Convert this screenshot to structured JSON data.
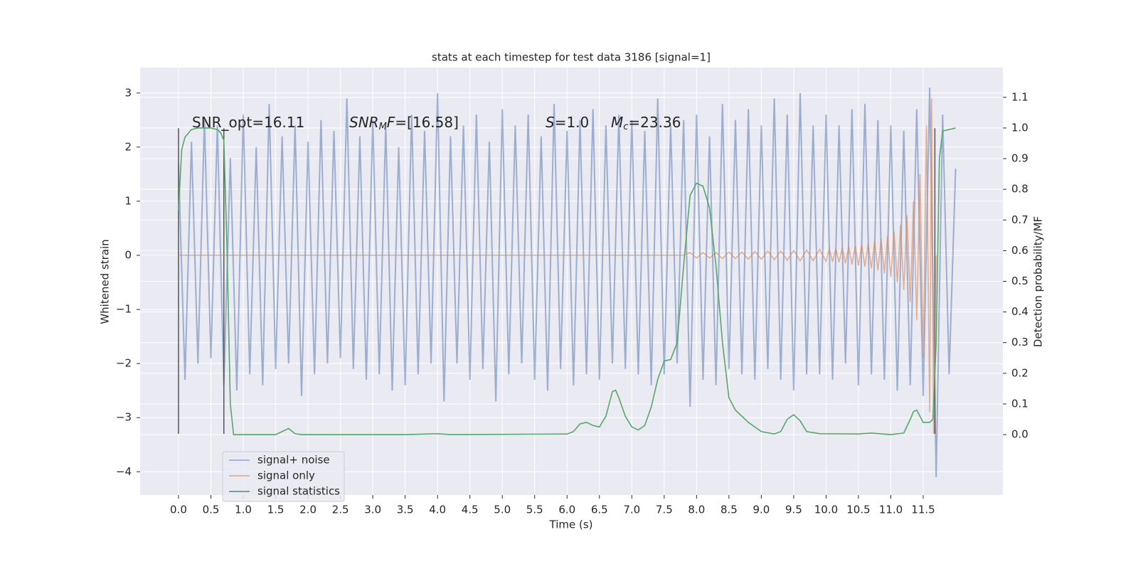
{
  "chart_data": {
    "type": "line",
    "title": "stats at each timestep for test data 3186 [signal=1]",
    "xlabel": "Time (s)",
    "ylabel": "Whitened strain",
    "y2label": "Detection probability/MF",
    "xlim": [
      -0.593,
      12.73
    ],
    "ylim": [
      -4.43,
      3.47
    ],
    "y2lim": [
      -0.197,
      1.197
    ],
    "xticks": [
      {
        "value": 0,
        "label": "0.0"
      },
      0.5,
      {
        "value": 1,
        "label": "1.0"
      },
      1.5,
      {
        "value": 2,
        "label": "2.0"
      },
      2.5,
      {
        "value": 3,
        "label": "3.0"
      },
      3.5,
      {
        "value": 4,
        "label": "4.0"
      },
      4.5,
      {
        "value": 5,
        "label": "5.0"
      },
      5.5,
      {
        "value": 6,
        "label": "6.0"
      },
      6.5,
      {
        "value": 7,
        "label": "7.0"
      },
      7.5,
      {
        "value": 8,
        "label": "8.0"
      },
      8.5,
      {
        "value": 9,
        "label": "9.0"
      },
      9.5,
      {
        "value": 10,
        "label": "10.0"
      },
      10.5,
      {
        "value": 11,
        "label": "11.0"
      },
      11.5
    ],
    "yticks": [
      {
        "value": -4,
        "label": "−4"
      },
      {
        "value": -3,
        "label": "−3"
      },
      {
        "value": -2,
        "label": "−2"
      },
      {
        "value": -1,
        "label": "−1"
      },
      0,
      1,
      2,
      3
    ],
    "y2ticks": [
      {
        "value": 0,
        "label": "0.0"
      },
      0.1,
      0.2,
      0.3,
      0.4,
      0.5,
      0.6,
      0.7,
      0.8,
      0.9,
      {
        "value": 1,
        "label": "1.0"
      },
      1.1
    ],
    "grid": true,
    "background": "#eaeaf2",
    "legend": "lower left",
    "series": [
      {
        "name": "signal+ noise",
        "color": "#4c72b0",
        "alpha": 0.5,
        "x": [
          0,
          0.1,
          0.2,
          0.3,
          0.4,
          0.5,
          0.6,
          0.7,
          0.8,
          0.9,
          1,
          1.1,
          1.2,
          1.3,
          1.4,
          1.5,
          1.6,
          1.7,
          1.8,
          1.9,
          2,
          2.1,
          2.2,
          2.3,
          2.4,
          2.5,
          2.6,
          2.7,
          2.8,
          2.9,
          3,
          3.1,
          3.2,
          3.3,
          3.4,
          3.5,
          3.6,
          3.7,
          3.8,
          3.9,
          4,
          4.1,
          4.2,
          4.3,
          4.4,
          4.5,
          4.6,
          4.7,
          4.8,
          4.9,
          5,
          5.1,
          5.2,
          5.3,
          5.4,
          5.5,
          5.6,
          5.7,
          5.8,
          5.9,
          6,
          6.1,
          6.2,
          6.3,
          6.4,
          6.5,
          6.6,
          6.7,
          6.8,
          6.9,
          7,
          7.1,
          7.2,
          7.3,
          7.4,
          7.5,
          7.6,
          7.7,
          7.8,
          7.9,
          8,
          8.1,
          8.2,
          8.3,
          8.4,
          8.5,
          8.6,
          8.7,
          8.8,
          8.9,
          9,
          9.1,
          9.2,
          9.3,
          9.4,
          9.5,
          9.6,
          9.7,
          9.8,
          9.9,
          10,
          10.1,
          10.2,
          10.3,
          10.4,
          10.5,
          10.6,
          10.7,
          10.8,
          10.9,
          11,
          11.1,
          11.2,
          11.3,
          11.4,
          11.5,
          11.6,
          11.7,
          11.8,
          11.9,
          12
        ],
        "values": [
          1.7,
          -2.3,
          2.1,
          -2.0,
          2.5,
          -1.9,
          2.4,
          -2.4,
          1.8,
          -2.5,
          2.6,
          -2.2,
          2.0,
          -2.4,
          2.8,
          -2.1,
          2.2,
          -2.0,
          2.4,
          -2.6,
          2.1,
          -2.2,
          2.5,
          -2.0,
          2.3,
          -1.9,
          2.9,
          -2.1,
          2.2,
          -2.3,
          2.5,
          -2.2,
          2.4,
          -2.5,
          2.0,
          -2.4,
          2.6,
          -2.2,
          2.3,
          -2.0,
          3.0,
          -2.7,
          2.2,
          -2.0,
          2.4,
          -2.3,
          2.6,
          -2.1,
          2.1,
          -2.7,
          2.7,
          -2.2,
          2.4,
          -2.0,
          2.6,
          -2.3,
          2.2,
          -2.5,
          2.8,
          -2.1,
          2.3,
          -2.4,
          2.5,
          -2.2,
          2.7,
          -2.3,
          2.4,
          -2.0,
          2.6,
          -2.1,
          2.5,
          -2.2,
          2.3,
          -2.4,
          2.9,
          -2.2,
          2.4,
          -2.0,
          2.5,
          -2.8,
          2.6,
          -2.3,
          2.2,
          -2.4,
          2.8,
          -2.1,
          2.5,
          -2.2,
          2.7,
          -2.3,
          2.4,
          -2.1,
          2.9,
          -2.3,
          2.6,
          -2.5,
          3.0,
          -2.2,
          2.4,
          -2.2,
          2.6,
          -2.3,
          2.4,
          -2.0,
          2.7,
          -2.4,
          2.8,
          -2.2,
          2.5,
          -2.3,
          2.4,
          -2.5,
          2.3,
          -2.4,
          2.7,
          -2.6,
          3.1,
          -4.1,
          2.6,
          -2.2,
          1.6
        ]
      },
      {
        "name": "signal only",
        "color": "#dd8452",
        "alpha": 0.6,
        "x": [
          0,
          7.8,
          7.9,
          8,
          8.1,
          8.2,
          8.3,
          8.4,
          8.5,
          8.6,
          8.7,
          8.8,
          8.9,
          9,
          9.1,
          9.2,
          9.3,
          9.4,
          9.5,
          9.6,
          9.7,
          9.8,
          9.9,
          10,
          10.05,
          10.1,
          10.15,
          10.2,
          10.25,
          10.3,
          10.35,
          10.4,
          10.45,
          10.5,
          10.55,
          10.6,
          10.65,
          10.7,
          10.75,
          10.8,
          10.85,
          10.9,
          10.95,
          11,
          11.05,
          11.1,
          11.15,
          11.2,
          11.25,
          11.3,
          11.35,
          11.4,
          11.45,
          11.5,
          11.55,
          11.6,
          11.63,
          11.66,
          11.7
        ],
        "values": [
          0,
          0,
          0.05,
          -0.05,
          0.05,
          -0.05,
          0.05,
          -0.06,
          0.06,
          -0.06,
          0.06,
          -0.07,
          0.07,
          -0.07,
          0.08,
          -0.08,
          0.08,
          -0.09,
          0.09,
          -0.1,
          0.1,
          -0.1,
          0.11,
          -0.11,
          0.12,
          -0.12,
          0.13,
          -0.13,
          0.14,
          -0.15,
          0.16,
          -0.17,
          0.18,
          -0.19,
          0.2,
          -0.21,
          0.22,
          -0.24,
          0.26,
          -0.28,
          0.3,
          -0.33,
          0.36,
          -0.4,
          0.44,
          -0.5,
          0.56,
          -0.64,
          0.74,
          -0.86,
          1.0,
          -1.2,
          1.5,
          -1.9,
          2.4,
          -2.9,
          2.9,
          -3.3,
          0
        ]
      },
      {
        "name": "signal statistics",
        "color": "#55a868",
        "alpha": 1,
        "axis": "y2",
        "x": [
          0,
          0.05,
          0.1,
          0.2,
          0.3,
          0.5,
          0.6,
          0.65,
          0.7,
          0.75,
          0.8,
          0.85,
          1.5,
          1.6,
          1.7,
          1.8,
          1.9,
          3.5,
          4.0,
          4.2,
          6.0,
          6.1,
          6.2,
          6.3,
          6.4,
          6.5,
          6.6,
          6.7,
          6.75,
          6.8,
          6.9,
          7.0,
          7.1,
          7.2,
          7.3,
          7.4,
          7.5,
          7.6,
          7.7,
          7.8,
          7.9,
          8.0,
          8.1,
          8.2,
          8.3,
          8.4,
          8.5,
          8.6,
          8.8,
          9.0,
          9.2,
          9.3,
          9.4,
          9.5,
          9.6,
          9.7,
          9.9,
          10.5,
          10.7,
          11.0,
          11.2,
          11.3,
          11.35,
          11.4,
          11.5,
          11.6,
          11.65,
          11.7,
          11.75,
          11.8,
          12.0
        ],
        "values": [
          0.73,
          0.93,
          0.97,
          0.995,
          1.0,
          1.0,
          0.995,
          0.985,
          0.96,
          0.6,
          0.1,
          0.0,
          0.0,
          0.01,
          0.02,
          0.003,
          0.0,
          0.0,
          0.003,
          0.0,
          0.002,
          0.01,
          0.035,
          0.04,
          0.03,
          0.025,
          0.06,
          0.14,
          0.145,
          0.12,
          0.06,
          0.025,
          0.015,
          0.03,
          0.09,
          0.18,
          0.24,
          0.245,
          0.3,
          0.55,
          0.78,
          0.82,
          0.81,
          0.74,
          0.55,
          0.3,
          0.12,
          0.08,
          0.04,
          0.01,
          0.002,
          0.01,
          0.05,
          0.065,
          0.045,
          0.01,
          0.003,
          0.002,
          0.005,
          0.0,
          0.005,
          0.05,
          0.075,
          0.08,
          0.04,
          0.04,
          0.05,
          0.3,
          0.9,
          0.99,
          1.0
        ]
      }
    ],
    "vlines": [
      {
        "x": 0,
        "ymin": -3.3,
        "ymax": 2.35
      },
      {
        "x": 0.7,
        "ymin": -3.3,
        "ymax": 2.35
      },
      {
        "x": 11.68,
        "ymin": -3.3,
        "ymax": 2.35
      }
    ],
    "vline_color": "#555555",
    "annotations": [
      [
        {
          "text": "SNR_opt=16.11"
        }
      ],
      [
        {
          "text": "SNR",
          "style": "italic"
        },
        {
          "text": "M",
          "style": "sub"
        },
        {
          "text": "F",
          "style": "italic"
        },
        {
          "text": "=[16.58]"
        }
      ],
      [
        {
          "text": "S",
          "style": "italic"
        },
        {
          "text": "=1.0"
        }
      ],
      [
        {
          "text": "M",
          "style": "italic"
        },
        {
          "text": "c",
          "style": "sub"
        },
        {
          "text": "=23.36"
        }
      ]
    ]
  }
}
